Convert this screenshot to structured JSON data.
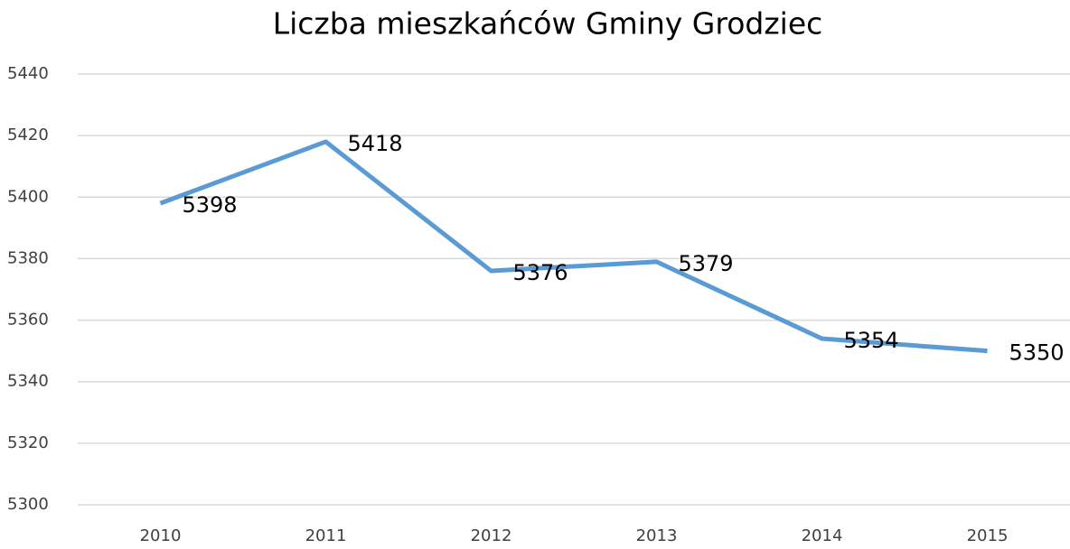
{
  "chart_data": {
    "type": "line",
    "title": "Liczba mieszkańców Gminy Grodziec",
    "categories": [
      "2010",
      "2011",
      "2012",
      "2013",
      "2014",
      "2015"
    ],
    "series": [
      {
        "name": "Liczba mieszkańców",
        "color": "#5b9bd5",
        "values": [
          5398,
          5418,
          5376,
          5379,
          5354,
          5350
        ]
      }
    ],
    "ylim": [
      5300,
      5440
    ],
    "yticks": [
      5300,
      5320,
      5340,
      5360,
      5380,
      5400,
      5420,
      5440
    ],
    "grid": true
  }
}
